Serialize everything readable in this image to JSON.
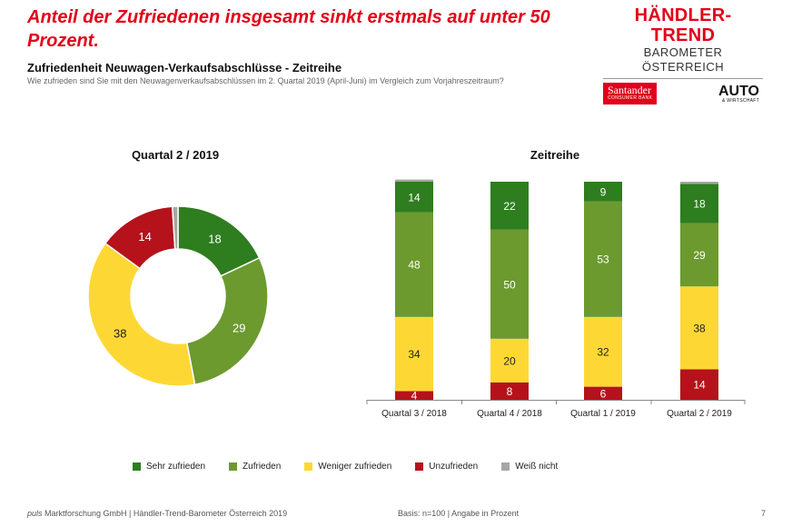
{
  "headline": "Anteil der Zufriedenen insgesamt sinkt erstmals auf unter 50 Prozent.",
  "brand": {
    "title": "HÄNDLER-TREND",
    "subtitle": "BAROMETER ÖSTERREICH",
    "santander": "Santander",
    "santander_sub": "CONSUMER BANK",
    "auto": "AUTO",
    "auto_sub": "& WIRTSCHAFT"
  },
  "subtitle": "Zufriedenheit Neuwagen-Verkaufsabschlüsse - Zeitreihe",
  "question": "Wie zufrieden sind Sie mit den Neuwagenverkaufsabschlüssen im 2. Quartal 2019 (April-Juni) im Vergleich zum Vorjahreszeitraum?",
  "colors": {
    "sehr_zufrieden": "#2e7d1f",
    "zufrieden": "#6c9a2e",
    "weniger_zufrieden": "#fdd835",
    "unzufrieden": "#b5121b",
    "weiss_nicht": "#a6a6a6"
  },
  "chart_data": [
    {
      "type": "pie",
      "title": "Quartal 2 / 2019",
      "donut": true,
      "start": "top, clockwise",
      "slices": [
        {
          "name": "Sehr zufrieden",
          "value": 18,
          "label": "18"
        },
        {
          "name": "Zufrieden",
          "value": 29,
          "label": "29"
        },
        {
          "name": "Weniger zufrieden",
          "value": 38,
          "label": "38"
        },
        {
          "name": "Unzufrieden",
          "value": 14,
          "label": "14"
        },
        {
          "name": "Weiß nicht",
          "value": 1,
          "label": ""
        }
      ]
    },
    {
      "type": "bar",
      "stacked": true,
      "title": "Zeitreihe",
      "categories": [
        "Quartal 3 / 2018",
        "Quartal 4 / 2018",
        "Quartal 1 / 2019",
        "Quartal 2 / 2019"
      ],
      "ylim": [
        0,
        100
      ],
      "grid": false,
      "series": [
        {
          "name": "Unzufrieden",
          "values": [
            4,
            8,
            6,
            14
          ]
        },
        {
          "name": "Weniger zufrieden",
          "values": [
            34,
            20,
            32,
            38
          ]
        },
        {
          "name": "Zufrieden",
          "values": [
            48,
            50,
            53,
            29
          ]
        },
        {
          "name": "Sehr zufrieden",
          "values": [
            14,
            22,
            9,
            18
          ]
        },
        {
          "name": "Weiß nicht",
          "values": [
            1,
            0,
            0,
            1
          ]
        }
      ]
    }
  ],
  "legend": [
    {
      "name": "Sehr zufrieden",
      "color": "#2e7d1f"
    },
    {
      "name": "Zufrieden",
      "color": "#6c9a2e"
    },
    {
      "name": "Weniger zufrieden",
      "color": "#fdd835"
    },
    {
      "name": "Unzufrieden",
      "color": "#b5121b"
    },
    {
      "name": "Weiß nicht",
      "color": "#a6a6a6"
    }
  ],
  "legend_placement": "bottom",
  "footer": {
    "left_italic": "puls",
    "left_rest": " Marktforschung GmbH | Händler-Trend-Barometer Österreich 2019",
    "middle": "Basis: n=100 | Angabe in Prozent",
    "page": "7"
  }
}
